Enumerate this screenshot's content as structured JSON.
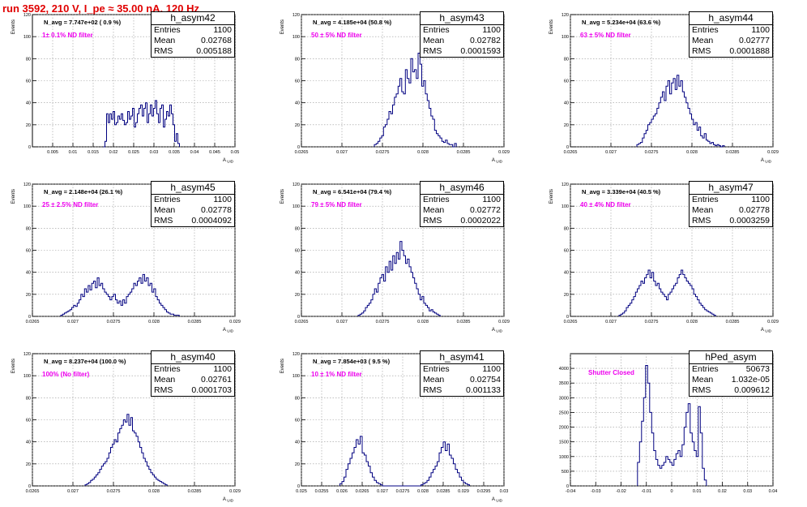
{
  "page_title": "run 3592,   210 V, I_pe ≈ 35.00 nA, 120 Hz",
  "chart_data": [
    {
      "type": "histogram",
      "name": "h_asym42",
      "navg": "N_avg = 7.747e+02 ( 0.9 %)",
      "filter": "1± 0.1% ND filter",
      "stats": [
        [
          "Entries",
          "1100"
        ],
        [
          "Mean",
          "0.02768"
        ],
        [
          "RMS",
          "0.005188"
        ]
      ],
      "ylabel": "Events",
      "xlabel": "A_uid",
      "xlim": [
        0,
        0.05
      ],
      "ylim": [
        0,
        120
      ],
      "xticks": [
        0.005,
        0.01,
        0.015,
        0.02,
        0.025,
        0.03,
        0.035,
        0.04,
        0.045,
        0.05
      ],
      "yticks": [
        0,
        20,
        40,
        60,
        80,
        100,
        120
      ],
      "xtick_labels": [
        "0.005",
        "0.01",
        "0.015",
        "0.02",
        "0.025",
        "0.03",
        "0.035",
        "0.04",
        "0.045",
        "0.05"
      ],
      "bins": {
        "start": 0.0175,
        "width": 0.0004,
        "counts": [
          0,
          5,
          30,
          22,
          30,
          25,
          32,
          20,
          22,
          28,
          25,
          30,
          24,
          20,
          22,
          32,
          25,
          28,
          35,
          18,
          22,
          30,
          35,
          38,
          28,
          35,
          40,
          22,
          30,
          38,
          28,
          35,
          42,
          30,
          22,
          35,
          38,
          18,
          25,
          32,
          28,
          38,
          30,
          20,
          5,
          12,
          3
        ]
      }
    },
    {
      "type": "histogram",
      "name": "h_asym43",
      "navg": "N_avg = 4.185e+04 (50.8 %)",
      "filter": "50 ± 5% ND filter",
      "stats": [
        [
          "Entries",
          "1100"
        ],
        [
          "Mean",
          "0.02782"
        ],
        [
          "RMS",
          "0.0001593"
        ]
      ],
      "ylabel": "Events",
      "xlabel": "A_uid",
      "xlim": [
        0.0265,
        0.029
      ],
      "ylim": [
        0,
        120
      ],
      "xticks": [
        0.0265,
        0.027,
        0.0275,
        0.028,
        0.0285,
        0.029
      ],
      "yticks": [
        0,
        20,
        40,
        60,
        80,
        100,
        120
      ],
      "xtick_labels": [
        "0.0265",
        "0.027",
        "0.0275",
        "0.028",
        "0.0285",
        "0.029"
      ],
      "bins": {
        "start": 0.0274,
        "width": 2.25e-05,
        "counts": [
          2,
          3,
          5,
          8,
          10,
          18,
          20,
          25,
          32,
          30,
          38,
          45,
          48,
          55,
          62,
          50,
          48,
          70,
          62,
          58,
          80,
          68,
          70,
          62,
          85,
          75,
          55,
          60,
          48,
          42,
          35,
          28,
          25,
          15,
          12,
          10,
          8,
          5,
          4,
          6,
          3,
          2,
          2,
          0,
          3
        ]
      }
    },
    {
      "type": "histogram",
      "name": "h_asym44",
      "navg": "N_avg = 5.234e+04 (63.6 %)",
      "filter": "63 ± 5% ND filter",
      "stats": [
        [
          "Entries",
          "1100"
        ],
        [
          "Mean",
          "0.02777"
        ],
        [
          "RMS",
          "0.0001888"
        ]
      ],
      "ylabel": "Events",
      "xlabel": "A_uid",
      "xlim": [
        0.0265,
        0.029
      ],
      "ylim": [
        0,
        120
      ],
      "xticks": [
        0.0265,
        0.027,
        0.0275,
        0.028,
        0.0285,
        0.029
      ],
      "yticks": [
        0,
        20,
        40,
        60,
        80,
        100,
        120
      ],
      "xtick_labels": [
        "0.0265",
        "0.027",
        "0.0275",
        "0.028",
        "0.0285",
        "0.029"
      ],
      "bins": {
        "start": 0.02732,
        "width": 2.25e-05,
        "counts": [
          2,
          3,
          4,
          8,
          12,
          15,
          20,
          22,
          25,
          28,
          30,
          35,
          40,
          45,
          50,
          42,
          55,
          60,
          48,
          58,
          62,
          52,
          65,
          55,
          60,
          50,
          45,
          40,
          35,
          30,
          25,
          20,
          22,
          15,
          18,
          10,
          8,
          12,
          6,
          5,
          3,
          4,
          2,
          1,
          2,
          1,
          0,
          1
        ]
      }
    },
    {
      "type": "histogram",
      "name": "h_asym45",
      "navg": "N_avg = 2.148e+04 (26.1 %)",
      "filter": "25 ± 2.5% ND filter",
      "stats": [
        [
          "Entries",
          "1100"
        ],
        [
          "Mean",
          "0.02778"
        ],
        [
          "RMS",
          "0.0004092"
        ]
      ],
      "ylabel": "Events",
      "xlabel": "A_uid",
      "xlim": [
        0.0265,
        0.029
      ],
      "ylim": [
        0,
        120
      ],
      "xticks": [
        0.0265,
        0.027,
        0.0275,
        0.028,
        0.0285,
        0.029
      ],
      "yticks": [
        0,
        20,
        40,
        60,
        80,
        100,
        120
      ],
      "xtick_labels": [
        "0.0265",
        "0.027",
        "0.0275",
        "0.028",
        "0.0285",
        "0.029"
      ],
      "bins": {
        "start": 0.02685,
        "width": 2.25e-05,
        "counts": [
          1,
          2,
          3,
          4,
          5,
          6,
          8,
          10,
          9,
          12,
          15,
          20,
          18,
          25,
          22,
          28,
          24,
          30,
          32,
          26,
          35,
          28,
          30,
          25,
          22,
          20,
          18,
          15,
          18,
          20,
          15,
          12,
          14,
          10,
          15,
          12,
          18,
          20,
          22,
          25,
          30,
          28,
          32,
          35,
          30,
          38,
          32,
          35,
          28,
          30,
          22,
          25,
          18,
          15,
          12,
          10,
          8,
          6,
          4,
          3,
          2,
          2,
          1,
          1,
          1
        ]
      }
    },
    {
      "type": "histogram",
      "name": "h_asym46",
      "navg": "N_avg = 6.541e+04 (79.4 %)",
      "filter": "79 ± 5% ND filter",
      "stats": [
        [
          "Entries",
          "1100"
        ],
        [
          "Mean",
          "0.02772"
        ],
        [
          "RMS",
          "0.0002022"
        ]
      ],
      "ylabel": "Events",
      "xlabel": "A_uid",
      "xlim": [
        0.0265,
        0.029
      ],
      "ylim": [
        0,
        120
      ],
      "xticks": [
        0.0265,
        0.027,
        0.0275,
        0.028,
        0.0285,
        0.029
      ],
      "yticks": [
        0,
        20,
        40,
        60,
        80,
        100,
        120
      ],
      "xtick_labels": [
        "0.0265",
        "0.027",
        "0.0275",
        "0.028",
        "0.0285",
        "0.029"
      ],
      "bins": {
        "start": 0.0272,
        "width": 2.25e-05,
        "counts": [
          1,
          2,
          3,
          5,
          8,
          10,
          12,
          15,
          20,
          25,
          22,
          30,
          35,
          38,
          32,
          45,
          40,
          50,
          42,
          55,
          48,
          58,
          52,
          68,
          60,
          55,
          48,
          52,
          45,
          40,
          35,
          30,
          25,
          20,
          15,
          18,
          12,
          10,
          8,
          5,
          6,
          4,
          3,
          2,
          1
        ]
      }
    },
    {
      "type": "histogram",
      "name": "h_asym47",
      "navg": "N_avg = 3.339e+04 (40.5 %)",
      "filter": "40 ± 4% ND filter",
      "stats": [
        [
          "Entries",
          "1100"
        ],
        [
          "Mean",
          "0.02778"
        ],
        [
          "RMS",
          "0.0003259"
        ]
      ],
      "ylabel": "Events",
      "xlabel": "A_uid",
      "xlim": [
        0.0265,
        0.029
      ],
      "ylim": [
        0,
        120
      ],
      "xticks": [
        0.0265,
        0.027,
        0.0275,
        0.028,
        0.0285,
        0.029
      ],
      "yticks": [
        0,
        20,
        40,
        60,
        80,
        100,
        120
      ],
      "xtick_labels": [
        "0.0265",
        "0.027",
        "0.0275",
        "0.028",
        "0.0285",
        "0.029"
      ],
      "bins": {
        "start": 0.0271,
        "width": 2.25e-05,
        "counts": [
          1,
          2,
          3,
          5,
          8,
          10,
          12,
          15,
          18,
          22,
          25,
          28,
          32,
          30,
          35,
          38,
          42,
          35,
          40,
          32,
          28,
          30,
          25,
          22,
          20,
          18,
          15,
          20,
          22,
          25,
          28,
          30,
          35,
          38,
          42,
          38,
          35,
          32,
          30,
          28,
          25,
          20,
          18,
          15,
          12,
          10,
          8,
          6,
          5,
          4,
          3,
          2,
          1
        ]
      }
    },
    {
      "type": "histogram",
      "name": "h_asym40",
      "navg": "N_avg = 8.237e+04 (100.0 %)",
      "filter": "100% (No filter)",
      "stats": [
        [
          "Entries",
          "1100"
        ],
        [
          "Mean",
          "0.02761"
        ],
        [
          "RMS",
          "0.0001703"
        ]
      ],
      "ylabel": "Events",
      "xlabel": "A_uid",
      "xlim": [
        0.0265,
        0.029
      ],
      "ylim": [
        0,
        120
      ],
      "xticks": [
        0.0265,
        0.027,
        0.0275,
        0.028,
        0.0285,
        0.029
      ],
      "yticks": [
        0,
        20,
        40,
        60,
        80,
        100,
        120
      ],
      "xtick_labels": [
        "0.0265",
        "0.027",
        "0.0275",
        "0.028",
        "0.0285",
        "0.029"
      ],
      "bins": {
        "start": 0.02715,
        "width": 2.25e-05,
        "counts": [
          1,
          2,
          3,
          5,
          6,
          8,
          10,
          12,
          15,
          18,
          20,
          22,
          25,
          30,
          35,
          38,
          42,
          40,
          48,
          52,
          55,
          60,
          58,
          65,
          55,
          62,
          50,
          48,
          45,
          40,
          35,
          30,
          25,
          22,
          18,
          15,
          12,
          10,
          8,
          6,
          5,
          4,
          3,
          2,
          1
        ]
      }
    },
    {
      "type": "histogram",
      "name": "h_asym41",
      "navg": "N_avg = 7.854e+03 ( 9.5 %)",
      "filter": "10 ± 1% ND filter",
      "stats": [
        [
          "Entries",
          "1100"
        ],
        [
          "Mean",
          "0.02754"
        ],
        [
          "RMS",
          "0.001133"
        ]
      ],
      "ylabel": "Events",
      "xlabel": "A_uid",
      "xlim": [
        0.025,
        0.03
      ],
      "ylim": [
        0,
        120
      ],
      "xticks": [
        0.025,
        0.0255,
        0.026,
        0.0265,
        0.027,
        0.0275,
        0.028,
        0.0285,
        0.029,
        0.0295,
        0.03
      ],
      "yticks": [
        0,
        20,
        40,
        60,
        80,
        100,
        120
      ],
      "xtick_labels": [
        "0.025",
        "0.0255",
        "0.026",
        "0.0265",
        "0.027",
        "0.0275",
        "0.028",
        "0.0285",
        "0.029",
        "0.0295",
        "0.03"
      ],
      "bins": {
        "start": 0.02595,
        "width": 5e-05,
        "counts": [
          2,
          4,
          8,
          15,
          20,
          25,
          30,
          35,
          42,
          38,
          45,
          30,
          28,
          22,
          18,
          12,
          8,
          5,
          3,
          2,
          1,
          0,
          0,
          0,
          0,
          0,
          0,
          0,
          0,
          0,
          0,
          0,
          0,
          0,
          0,
          0,
          0,
          0,
          0,
          0,
          1,
          2,
          3,
          5,
          8,
          12,
          15,
          18,
          22,
          30,
          35,
          40,
          32,
          38,
          28,
          25,
          20,
          15,
          12,
          8,
          5,
          3,
          2,
          1
        ]
      }
    },
    {
      "type": "histogram",
      "name": "hPed_asym",
      "navg": "",
      "filter": "Shutter Closed",
      "stats": [
        [
          "Entries",
          "50673"
        ],
        [
          "Mean",
          "1.032e-05"
        ],
        [
          "RMS",
          "0.009612"
        ]
      ],
      "ylabel": "",
      "xlabel": "",
      "xlim": [
        -0.04,
        0.04
      ],
      "ylim": [
        0,
        4500
      ],
      "xticks": [
        -0.04,
        -0.03,
        -0.02,
        -0.01,
        0,
        0.01,
        0.02,
        0.03,
        0.04
      ],
      "yticks": [
        0,
        500,
        1000,
        1500,
        2000,
        2500,
        3000,
        3500,
        4000
      ],
      "xtick_labels": [
        "-0.04",
        "-0.03",
        "-0.02",
        "-0.01",
        "0",
        "0.01",
        "0.02",
        "0.03",
        "0.04"
      ],
      "bins": {
        "start": -0.0135,
        "width": 0.0008,
        "counts": [
          800,
          1500,
          2200,
          3000,
          4100,
          3500,
          2500,
          1800,
          1200,
          900,
          700,
          600,
          700,
          800,
          1000,
          900,
          800,
          700,
          900,
          1100,
          1200,
          1000,
          1400,
          2000,
          2500,
          2800,
          1800,
          1500,
          1200,
          1000,
          2700,
          1800,
          600,
          200
        ]
      }
    }
  ]
}
